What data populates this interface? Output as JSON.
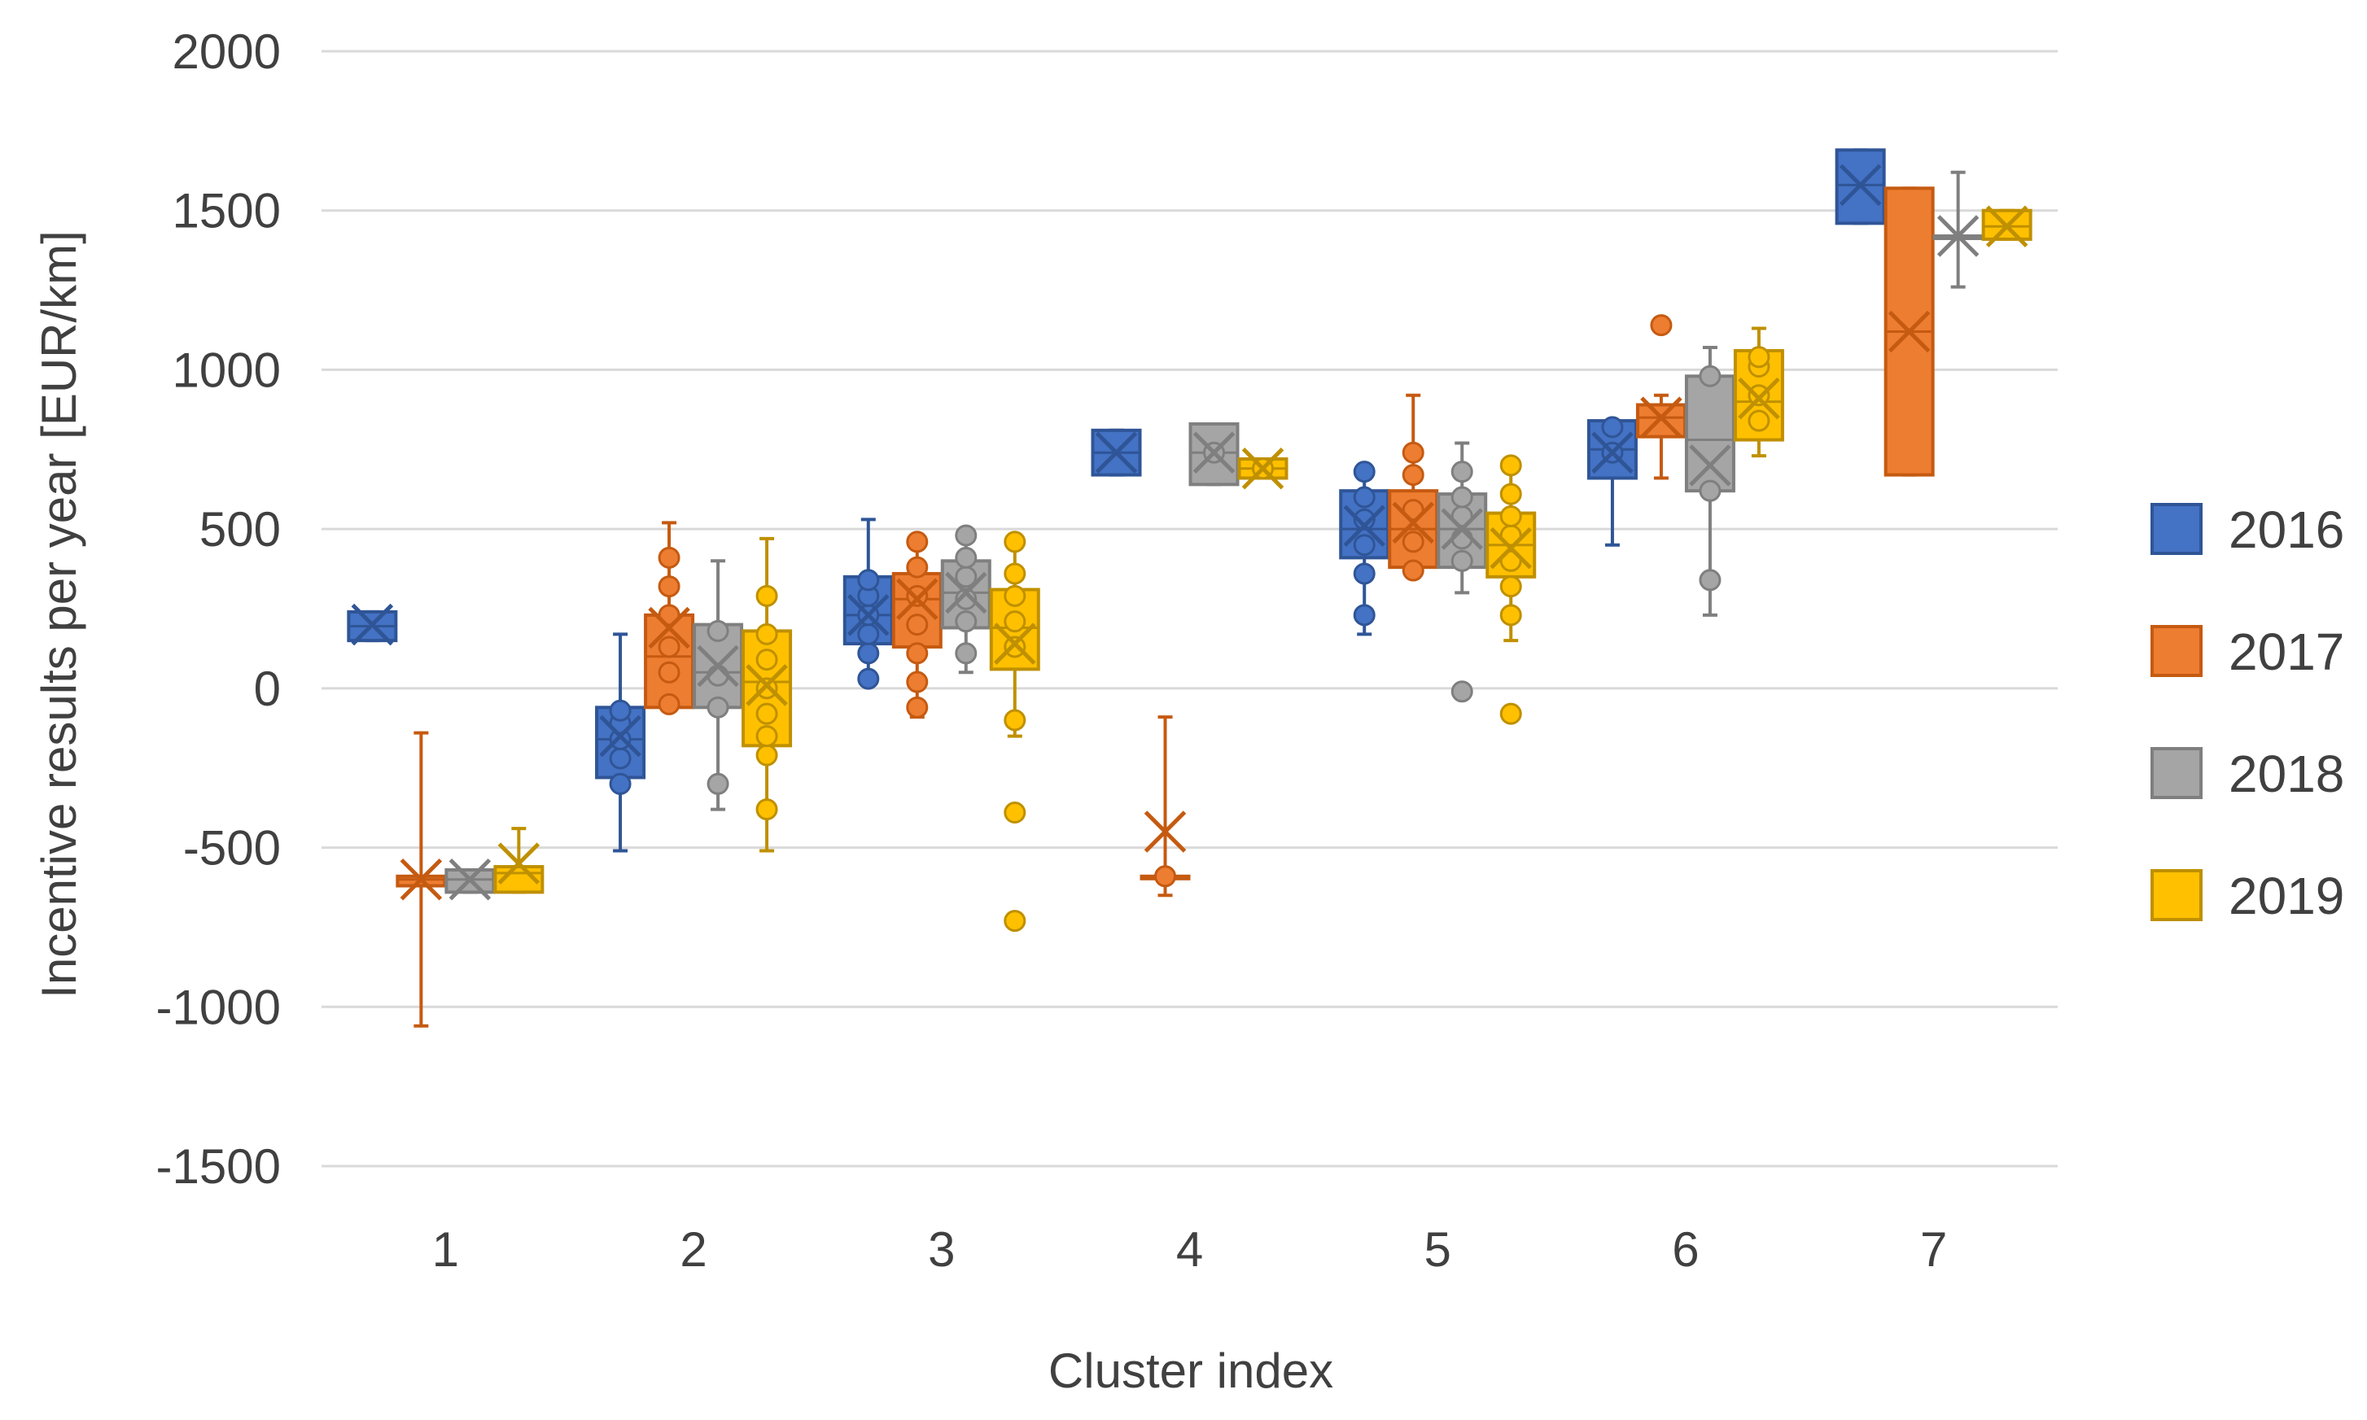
{
  "chart_data": {
    "type": "boxplot",
    "title": "",
    "xlabel": "Cluster index",
    "ylabel": "Incentive results per year [EUR/km]",
    "ylim": [
      -1500,
      2000
    ],
    "yticks": [
      2000,
      1500,
      1000,
      500,
      0,
      -500,
      -1000,
      -1500
    ],
    "ytick_labels": [
      "2000",
      "1500",
      "1000",
      "500",
      "0",
      "-500",
      "-1000",
      "-1500"
    ],
    "categories": [
      "1",
      "2",
      "3",
      "4",
      "5",
      "6",
      "7"
    ],
    "grid": true,
    "legend_position": "right",
    "series": [
      {
        "name": "2016",
        "color": "#4472C4",
        "stroke": "#2F5597",
        "boxes": [
          {
            "category": "1",
            "q1": 150,
            "q3": 240,
            "median": 195,
            "mean": 200,
            "whisker_low": 150,
            "whisker_high": 240,
            "points": []
          },
          {
            "category": "2",
            "q1": -280,
            "q3": -60,
            "median": -160,
            "mean": -150,
            "whisker_low": -510,
            "whisker_high": 170,
            "points": [
              -300,
              -220,
              -160,
              -110,
              -70
            ]
          },
          {
            "category": "3",
            "q1": 140,
            "q3": 350,
            "median": 230,
            "mean": 230,
            "whisker_low": 30,
            "whisker_high": 530,
            "points": [
              30,
              110,
              170,
              230,
              290,
              340
            ]
          },
          {
            "category": "4",
            "q1": 670,
            "q3": 810,
            "median": 740,
            "mean": 740,
            "whisker_low": 670,
            "whisker_high": 810,
            "points": []
          },
          {
            "category": "5",
            "q1": 410,
            "q3": 620,
            "median": 500,
            "mean": 510,
            "whisker_low": 170,
            "whisker_high": 680,
            "points": [
              230,
              360,
              450,
              530,
              600,
              680
            ]
          },
          {
            "category": "6",
            "q1": 660,
            "q3": 840,
            "median": 750,
            "mean": 740,
            "whisker_low": 450,
            "whisker_high": 840,
            "points": [
              740,
              820
            ]
          },
          {
            "category": "7",
            "q1": 1460,
            "q3": 1690,
            "median": 1580,
            "mean": 1580,
            "whisker_low": 1460,
            "whisker_high": 1690,
            "points": []
          }
        ]
      },
      {
        "name": "2017",
        "color": "#ED7D31",
        "stroke": "#C55A11",
        "boxes": [
          {
            "category": "1",
            "q1": -620,
            "q3": -590,
            "median": -600,
            "mean": -600,
            "whisker_low": -1060,
            "whisker_high": -140,
            "points": []
          },
          {
            "category": "2",
            "q1": -60,
            "q3": 230,
            "median": 100,
            "mean": 190,
            "whisker_low": -60,
            "whisker_high": 520,
            "points": [
              -50,
              50,
              130,
              230,
              320,
              410
            ]
          },
          {
            "category": "3",
            "q1": 130,
            "q3": 360,
            "median": 280,
            "mean": 280,
            "whisker_low": -90,
            "whisker_high": 460,
            "points": [
              -60,
              20,
              110,
              200,
              290,
              380,
              460
            ]
          },
          {
            "category": "4",
            "q1": -590,
            "q3": -590,
            "median": -590,
            "mean": -450,
            "whisker_low": -650,
            "whisker_high": -90,
            "points": [
              -590
            ]
          },
          {
            "category": "5",
            "q1": 380,
            "q3": 620,
            "median": 500,
            "mean": 520,
            "whisker_low": 370,
            "whisker_high": 920,
            "points": [
              370,
              460,
              560,
              670,
              740
            ]
          },
          {
            "category": "6",
            "q1": 790,
            "q3": 890,
            "median": 850,
            "mean": 850,
            "whisker_low": 660,
            "whisker_high": 920,
            "points": [
              1140
            ]
          },
          {
            "category": "7",
            "q1": 670,
            "q3": 1570,
            "median": 1120,
            "mean": 1120,
            "whisker_low": 670,
            "whisker_high": 1570,
            "points": []
          }
        ]
      },
      {
        "name": "2018",
        "color": "#A5A5A5",
        "stroke": "#7F7F7F",
        "boxes": [
          {
            "category": "1",
            "q1": -640,
            "q3": -570,
            "median": -600,
            "mean": -600,
            "whisker_low": -640,
            "whisker_high": -570,
            "points": []
          },
          {
            "category": "2",
            "q1": -60,
            "q3": 200,
            "median": 50,
            "mean": 70,
            "whisker_low": -380,
            "whisker_high": 400,
            "points": [
              -300,
              -60,
              40,
              180
            ]
          },
          {
            "category": "3",
            "q1": 190,
            "q3": 400,
            "median": 300,
            "mean": 300,
            "whisker_low": 50,
            "whisker_high": 480,
            "points": [
              110,
              210,
              280,
              350,
              410,
              480
            ]
          },
          {
            "category": "4",
            "q1": 640,
            "q3": 830,
            "median": 740,
            "mean": 740,
            "whisker_low": 640,
            "whisker_high": 830,
            "points": [
              740
            ]
          },
          {
            "category": "5",
            "q1": 380,
            "q3": 610,
            "median": 500,
            "mean": 500,
            "whisker_low": 300,
            "whisker_high": 770,
            "points": [
              -10,
              400,
              470,
              540,
              600,
              680
            ]
          },
          {
            "category": "6",
            "q1": 620,
            "q3": 980,
            "median": 780,
            "mean": 700,
            "whisker_low": 230,
            "whisker_high": 1070,
            "points": [
              340,
              620,
              980
            ]
          },
          {
            "category": "7",
            "q1": 1420,
            "q3": 1420,
            "median": 1420,
            "mean": 1420,
            "whisker_low": 1260,
            "whisker_high": 1620,
            "points": []
          }
        ]
      },
      {
        "name": "2019",
        "color": "#FFC000",
        "stroke": "#BF9000",
        "boxes": [
          {
            "category": "1",
            "q1": -640,
            "q3": -560,
            "median": -580,
            "mean": -550,
            "whisker_low": -640,
            "whisker_high": -440,
            "points": []
          },
          {
            "category": "2",
            "q1": -180,
            "q3": 180,
            "median": 20,
            "mean": 10,
            "whisker_low": -510,
            "whisker_high": 470,
            "points": [
              -380,
              -210,
              -150,
              -80,
              0,
              90,
              170,
              290
            ]
          },
          {
            "category": "3",
            "q1": 60,
            "q3": 310,
            "median": 190,
            "mean": 140,
            "whisker_low": -150,
            "whisker_high": 460,
            "points": [
              -730,
              -390,
              -100,
              130,
              210,
              290,
              360,
              460
            ]
          },
          {
            "category": "4",
            "q1": 660,
            "q3": 720,
            "median": 690,
            "mean": 690,
            "whisker_low": 660,
            "whisker_high": 720,
            "points": [
              690
            ]
          },
          {
            "category": "5",
            "q1": 350,
            "q3": 550,
            "median": 450,
            "mean": 440,
            "whisker_low": 150,
            "whisker_high": 700,
            "points": [
              -80,
              230,
              320,
              400,
              480,
              540,
              610,
              700
            ]
          },
          {
            "category": "6",
            "q1": 780,
            "q3": 1060,
            "median": 900,
            "mean": 910,
            "whisker_low": 730,
            "whisker_high": 1130,
            "points": [
              840,
              920,
              1010,
              1040
            ]
          },
          {
            "category": "7",
            "q1": 1410,
            "q3": 1500,
            "median": 1450,
            "mean": 1450,
            "whisker_low": 1410,
            "whisker_high": 1500,
            "points": []
          }
        ]
      }
    ]
  }
}
